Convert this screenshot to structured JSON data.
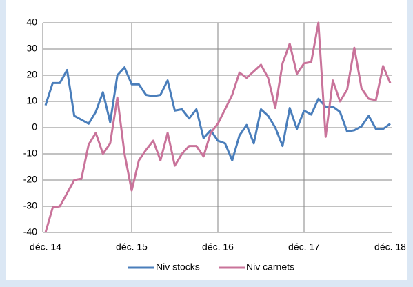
{
  "chart_data": {
    "type": "line",
    "categories": [
      "déc. 14",
      null,
      null,
      null,
      null,
      null,
      null,
      null,
      null,
      null,
      null,
      null,
      "déc. 15",
      null,
      null,
      null,
      null,
      null,
      null,
      null,
      null,
      null,
      null,
      null,
      "déc. 16",
      null,
      null,
      null,
      null,
      null,
      null,
      null,
      null,
      null,
      null,
      null,
      "déc. 17",
      null,
      null,
      null,
      null,
      null,
      null,
      null,
      null,
      null,
      null,
      null,
      "déc. 18"
    ],
    "series": [
      {
        "name": "Niv stocks",
        "color": "#4a7ebb",
        "values": [
          8.5,
          17,
          17,
          22,
          4.5,
          3,
          1.5,
          6,
          13.5,
          2,
          20,
          23,
          16.5,
          16.5,
          12.5,
          12,
          12.5,
          18,
          6.5,
          7,
          3.5,
          7,
          -4,
          -1,
          -5,
          -6,
          -12.5,
          -3,
          1,
          -6,
          7,
          4.5,
          0,
          -7,
          7.5,
          -0.5,
          6.5,
          5,
          11,
          8,
          8,
          6,
          -1.5,
          -1,
          0.5,
          4.5,
          -0.5,
          -0.5,
          1.5
        ]
      },
      {
        "name": "Niv carnets",
        "color": "#c9739a",
        "values": [
          -40,
          -30.5,
          -30,
          -25,
          -20,
          -19.5,
          -6.5,
          -2,
          -10,
          -6,
          11.5,
          -10,
          -24,
          -12.5,
          -8.5,
          -5,
          -12.5,
          -2,
          -14.5,
          -10,
          -7,
          -7,
          -11,
          -2,
          1.5,
          7,
          12.5,
          21,
          19,
          21.5,
          24,
          19,
          7.5,
          24.5,
          32,
          20.5,
          24.5,
          25,
          40,
          -3.5,
          18,
          10,
          14.5,
          30.5,
          15,
          11,
          10.5,
          23.5,
          17
        ]
      }
    ],
    "ylim": [
      -40,
      40
    ],
    "yticks": [
      -40,
      -30,
      -20,
      -10,
      0,
      10,
      20,
      30,
      40
    ],
    "grid": true,
    "legend": "bottom"
  }
}
